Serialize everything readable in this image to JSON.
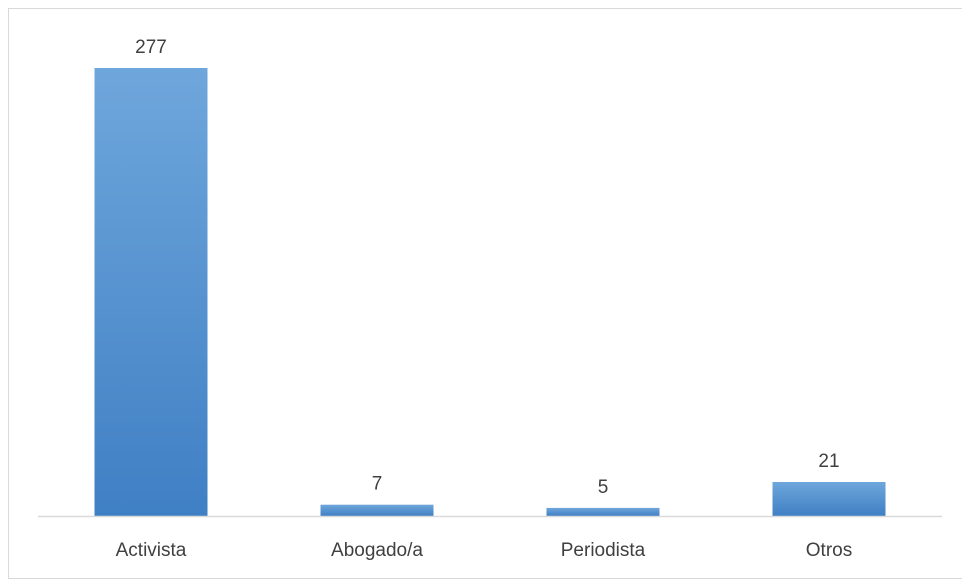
{
  "chart_data": {
    "type": "bar",
    "categories": [
      "Activista",
      "Abogado/a",
      "Periodista",
      "Otros"
    ],
    "values": [
      277,
      7,
      5,
      21
    ],
    "value_labels": [
      "277",
      "7",
      "5",
      "21"
    ],
    "title": "",
    "xlabel": "",
    "ylabel": "",
    "ylim": [
      0,
      277
    ],
    "grid": false,
    "legend": "none",
    "bar_color_top": "#6fa7dc",
    "bar_color_bottom": "#3f7fc4",
    "axis_color": "#d9d9d9",
    "text_color": "#404040"
  }
}
